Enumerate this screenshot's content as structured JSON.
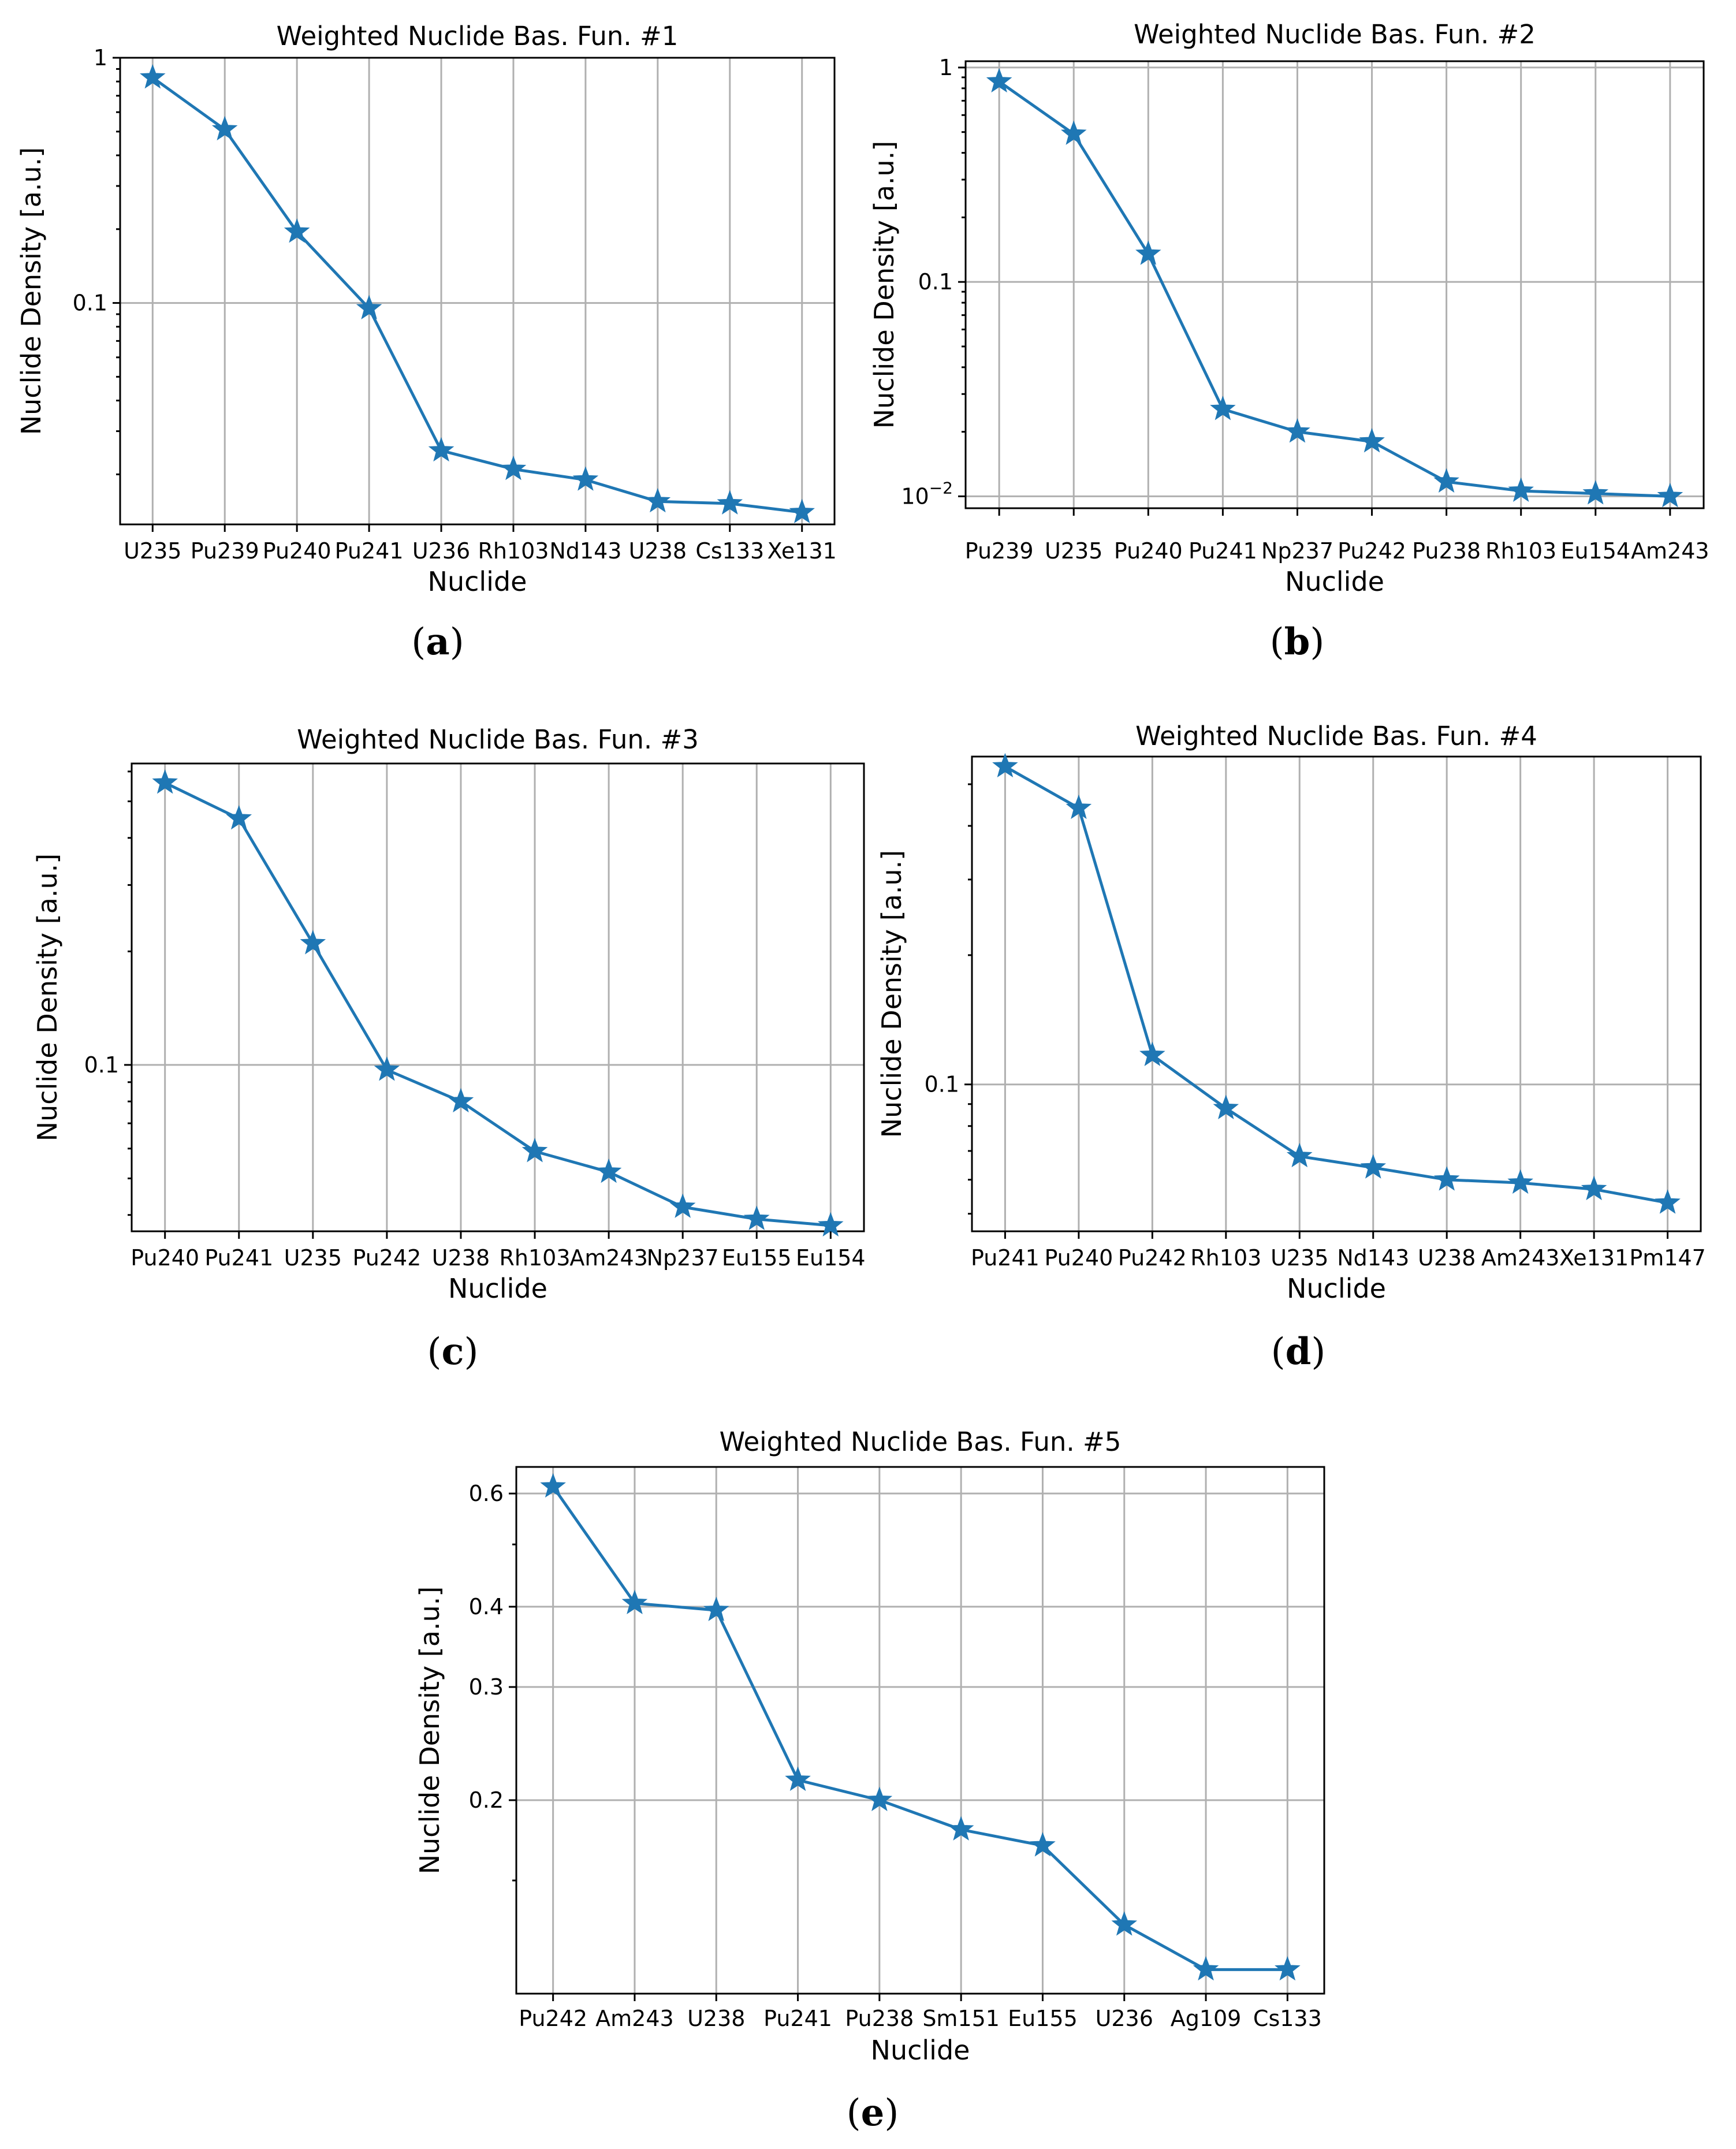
{
  "chart_data": [
    {
      "type": "line",
      "panel": "(a)",
      "caption_letter": "a",
      "title": "Weighted Nuclide Bas. Fun. #1",
      "xlabel": "Nuclide",
      "ylabel": "Nuclide Density [a.u.]",
      "yscale": "log",
      "ylim": [
        0.0125,
        1.0
      ],
      "yticks": [
        {
          "value": 1,
          "label": "1"
        },
        {
          "value": 0.1,
          "label": "0.1"
        }
      ],
      "yminor": [
        0.02,
        0.03,
        0.04,
        0.05,
        0.06,
        0.07,
        0.08,
        0.09,
        0.2,
        0.3,
        0.4,
        0.5,
        0.6,
        0.7,
        0.8,
        0.9
      ],
      "categories": [
        "U235",
        "Pu239",
        "Pu240",
        "Pu241",
        "U236",
        "Rh103",
        "Nd143",
        "U238",
        "Cs133",
        "Xe131"
      ],
      "values": [
        0.83,
        0.51,
        0.195,
        0.095,
        0.025,
        0.021,
        0.019,
        0.0155,
        0.0152,
        0.014
      ]
    },
    {
      "type": "line",
      "panel": "(b)",
      "caption_letter": "b",
      "title": "Weighted Nuclide Bas. Fun. #2",
      "xlabel": "Nuclide",
      "ylabel": "Nuclide Density [a.u.]",
      "yscale": "log",
      "ylim": [
        0.0088,
        1.07
      ],
      "yticks": [
        {
          "value": 1,
          "label": "1"
        },
        {
          "value": 0.1,
          "label": "0.1"
        },
        {
          "value": 0.01,
          "label": "10",
          "exp": "−2"
        }
      ],
      "yminor": [
        0.02,
        0.03,
        0.04,
        0.05,
        0.06,
        0.07,
        0.08,
        0.09,
        0.2,
        0.3,
        0.4,
        0.5,
        0.6,
        0.7,
        0.8,
        0.9
      ],
      "categories": [
        "Pu239",
        "U235",
        "Pu240",
        "Pu241",
        "Np237",
        "Pu242",
        "Pu238",
        "Rh103",
        "Eu154",
        "Am243"
      ],
      "values": [
        0.86,
        0.49,
        0.135,
        0.0255,
        0.02,
        0.018,
        0.0117,
        0.0106,
        0.0103,
        0.01
      ]
    },
    {
      "type": "line",
      "panel": "(c)",
      "caption_letter": "c",
      "title": "Weighted Nuclide Bas. Fun. #3",
      "xlabel": "Nuclide",
      "ylabel": "Nuclide Density [a.u.]",
      "yscale": "log",
      "ylim": [
        0.0362,
        0.63
      ],
      "yticks": [
        {
          "value": 0.1,
          "label": "0.1"
        }
      ],
      "yminor": [
        0.04,
        0.05,
        0.06,
        0.07,
        0.08,
        0.09,
        0.2,
        0.3,
        0.4,
        0.5,
        0.6
      ],
      "categories": [
        "Pu240",
        "Pu241",
        "U235",
        "Pu242",
        "U238",
        "Rh103",
        "Am243",
        "Np237",
        "Eu155",
        "Eu154"
      ],
      "values": [
        0.56,
        0.45,
        0.21,
        0.097,
        0.08,
        0.059,
        0.052,
        0.042,
        0.039,
        0.0375
      ]
    },
    {
      "type": "line",
      "panel": "(d)",
      "caption_letter": "d",
      "title": "Weighted Nuclide Bas. Fun. #4",
      "xlabel": "Nuclide",
      "ylabel": "Nuclide Density [a.u.]",
      "yscale": "log",
      "ylim": [
        0.0455,
        0.58
      ],
      "yticks": [
        {
          "value": 0.1,
          "label": "0.1"
        }
      ],
      "yminor": [
        0.05,
        0.06,
        0.07,
        0.08,
        0.09,
        0.2,
        0.3,
        0.4,
        0.5
      ],
      "categories": [
        "Pu241",
        "Pu240",
        "Pu242",
        "Rh103",
        "U235",
        "Nd143",
        "U238",
        "Am243",
        "Xe131",
        "Pm147"
      ],
      "values": [
        0.55,
        0.44,
        0.117,
        0.088,
        0.068,
        0.064,
        0.06,
        0.059,
        0.057,
        0.053
      ]
    },
    {
      "type": "line",
      "panel": "(e)",
      "caption_letter": "e",
      "title": "Weighted Nuclide Bas. Fun. #5",
      "xlabel": "Nuclide",
      "ylabel": "Nuclide Density [a.u.]",
      "yscale": "log",
      "ylim": [
        0.1,
        0.66
      ],
      "yticks": [
        {
          "value": 0.6,
          "label": "0.6"
        },
        {
          "value": 0.4,
          "label": "0.4"
        },
        {
          "value": 0.3,
          "label": "0.3"
        },
        {
          "value": 0.2,
          "label": "0.2"
        }
      ],
      "yminor": [
        0.5,
        0.15
      ],
      "categories": [
        "Pu242",
        "Am243",
        "U238",
        "Pu241",
        "Pu238",
        "Sm151",
        "Eu155",
        "U236",
        "Ag109",
        "Cs133"
      ],
      "values": [
        0.615,
        0.405,
        0.395,
        0.215,
        0.2,
        0.18,
        0.17,
        0.128,
        0.109,
        0.109
      ]
    }
  ]
}
